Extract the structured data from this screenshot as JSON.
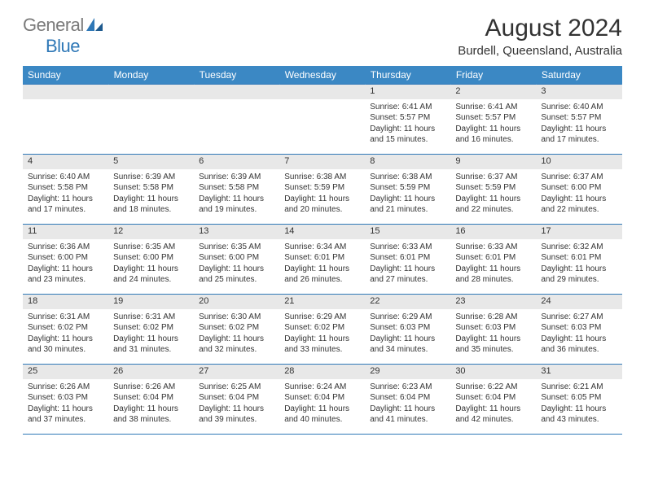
{
  "logo": {
    "general": "General",
    "blue": "Blue"
  },
  "title": "August 2024",
  "location": "Burdell, Queensland, Australia",
  "colors": {
    "header_bg": "#3b88c4",
    "header_text": "#ffffff",
    "border": "#2f78b7",
    "daynum_bg": "#e8e8e8",
    "logo_gray": "#7a7a7a",
    "logo_blue": "#2f78b7",
    "text": "#333333",
    "background": "#ffffff"
  },
  "day_headers": [
    "Sunday",
    "Monday",
    "Tuesday",
    "Wednesday",
    "Thursday",
    "Friday",
    "Saturday"
  ],
  "weeks": [
    [
      {
        "num": "",
        "info": ""
      },
      {
        "num": "",
        "info": ""
      },
      {
        "num": "",
        "info": ""
      },
      {
        "num": "",
        "info": ""
      },
      {
        "num": "1",
        "info": "Sunrise: 6:41 AM\nSunset: 5:57 PM\nDaylight: 11 hours and 15 minutes."
      },
      {
        "num": "2",
        "info": "Sunrise: 6:41 AM\nSunset: 5:57 PM\nDaylight: 11 hours and 16 minutes."
      },
      {
        "num": "3",
        "info": "Sunrise: 6:40 AM\nSunset: 5:57 PM\nDaylight: 11 hours and 17 minutes."
      }
    ],
    [
      {
        "num": "4",
        "info": "Sunrise: 6:40 AM\nSunset: 5:58 PM\nDaylight: 11 hours and 17 minutes."
      },
      {
        "num": "5",
        "info": "Sunrise: 6:39 AM\nSunset: 5:58 PM\nDaylight: 11 hours and 18 minutes."
      },
      {
        "num": "6",
        "info": "Sunrise: 6:39 AM\nSunset: 5:58 PM\nDaylight: 11 hours and 19 minutes."
      },
      {
        "num": "7",
        "info": "Sunrise: 6:38 AM\nSunset: 5:59 PM\nDaylight: 11 hours and 20 minutes."
      },
      {
        "num": "8",
        "info": "Sunrise: 6:38 AM\nSunset: 5:59 PM\nDaylight: 11 hours and 21 minutes."
      },
      {
        "num": "9",
        "info": "Sunrise: 6:37 AM\nSunset: 5:59 PM\nDaylight: 11 hours and 22 minutes."
      },
      {
        "num": "10",
        "info": "Sunrise: 6:37 AM\nSunset: 6:00 PM\nDaylight: 11 hours and 22 minutes."
      }
    ],
    [
      {
        "num": "11",
        "info": "Sunrise: 6:36 AM\nSunset: 6:00 PM\nDaylight: 11 hours and 23 minutes."
      },
      {
        "num": "12",
        "info": "Sunrise: 6:35 AM\nSunset: 6:00 PM\nDaylight: 11 hours and 24 minutes."
      },
      {
        "num": "13",
        "info": "Sunrise: 6:35 AM\nSunset: 6:00 PM\nDaylight: 11 hours and 25 minutes."
      },
      {
        "num": "14",
        "info": "Sunrise: 6:34 AM\nSunset: 6:01 PM\nDaylight: 11 hours and 26 minutes."
      },
      {
        "num": "15",
        "info": "Sunrise: 6:33 AM\nSunset: 6:01 PM\nDaylight: 11 hours and 27 minutes."
      },
      {
        "num": "16",
        "info": "Sunrise: 6:33 AM\nSunset: 6:01 PM\nDaylight: 11 hours and 28 minutes."
      },
      {
        "num": "17",
        "info": "Sunrise: 6:32 AM\nSunset: 6:01 PM\nDaylight: 11 hours and 29 minutes."
      }
    ],
    [
      {
        "num": "18",
        "info": "Sunrise: 6:31 AM\nSunset: 6:02 PM\nDaylight: 11 hours and 30 minutes."
      },
      {
        "num": "19",
        "info": "Sunrise: 6:31 AM\nSunset: 6:02 PM\nDaylight: 11 hours and 31 minutes."
      },
      {
        "num": "20",
        "info": "Sunrise: 6:30 AM\nSunset: 6:02 PM\nDaylight: 11 hours and 32 minutes."
      },
      {
        "num": "21",
        "info": "Sunrise: 6:29 AM\nSunset: 6:02 PM\nDaylight: 11 hours and 33 minutes."
      },
      {
        "num": "22",
        "info": "Sunrise: 6:29 AM\nSunset: 6:03 PM\nDaylight: 11 hours and 34 minutes."
      },
      {
        "num": "23",
        "info": "Sunrise: 6:28 AM\nSunset: 6:03 PM\nDaylight: 11 hours and 35 minutes."
      },
      {
        "num": "24",
        "info": "Sunrise: 6:27 AM\nSunset: 6:03 PM\nDaylight: 11 hours and 36 minutes."
      }
    ],
    [
      {
        "num": "25",
        "info": "Sunrise: 6:26 AM\nSunset: 6:03 PM\nDaylight: 11 hours and 37 minutes."
      },
      {
        "num": "26",
        "info": "Sunrise: 6:26 AM\nSunset: 6:04 PM\nDaylight: 11 hours and 38 minutes."
      },
      {
        "num": "27",
        "info": "Sunrise: 6:25 AM\nSunset: 6:04 PM\nDaylight: 11 hours and 39 minutes."
      },
      {
        "num": "28",
        "info": "Sunrise: 6:24 AM\nSunset: 6:04 PM\nDaylight: 11 hours and 40 minutes."
      },
      {
        "num": "29",
        "info": "Sunrise: 6:23 AM\nSunset: 6:04 PM\nDaylight: 11 hours and 41 minutes."
      },
      {
        "num": "30",
        "info": "Sunrise: 6:22 AM\nSunset: 6:04 PM\nDaylight: 11 hours and 42 minutes."
      },
      {
        "num": "31",
        "info": "Sunrise: 6:21 AM\nSunset: 6:05 PM\nDaylight: 11 hours and 43 minutes."
      }
    ]
  ]
}
